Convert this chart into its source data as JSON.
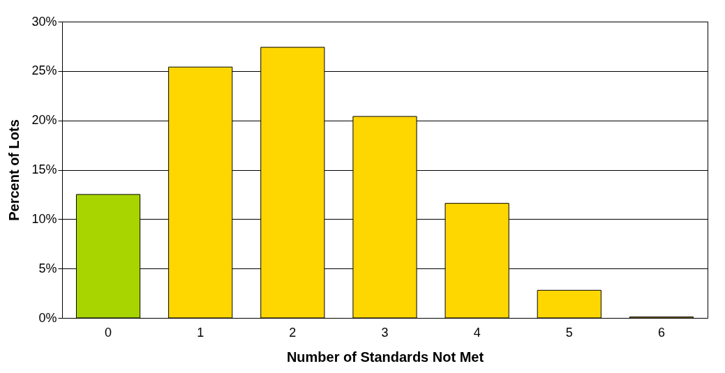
{
  "chart_data": {
    "type": "bar",
    "xlabel": "Number of Standards Not Met",
    "ylabel": "Percent of Lots",
    "categories": [
      "0",
      "1",
      "2",
      "3",
      "4",
      "5",
      "6"
    ],
    "values": [
      12.5,
      25.4,
      27.4,
      20.4,
      11.6,
      2.8,
      0.1
    ],
    "colors": [
      "#a8d400",
      "#ffd700",
      "#ffd700",
      "#ffd700",
      "#ffd700",
      "#ffd700",
      "#ffd700"
    ],
    "ylim": [
      0,
      30
    ],
    "yticks": [
      {
        "value": 0,
        "label": "0%"
      },
      {
        "value": 5,
        "label": "5%"
      },
      {
        "value": 10,
        "label": "10%"
      },
      {
        "value": 15,
        "label": "15%"
      },
      {
        "value": 20,
        "label": "20%"
      },
      {
        "value": 25,
        "label": "25%"
      },
      {
        "value": 30,
        "label": "30%"
      }
    ],
    "grid": "y"
  }
}
